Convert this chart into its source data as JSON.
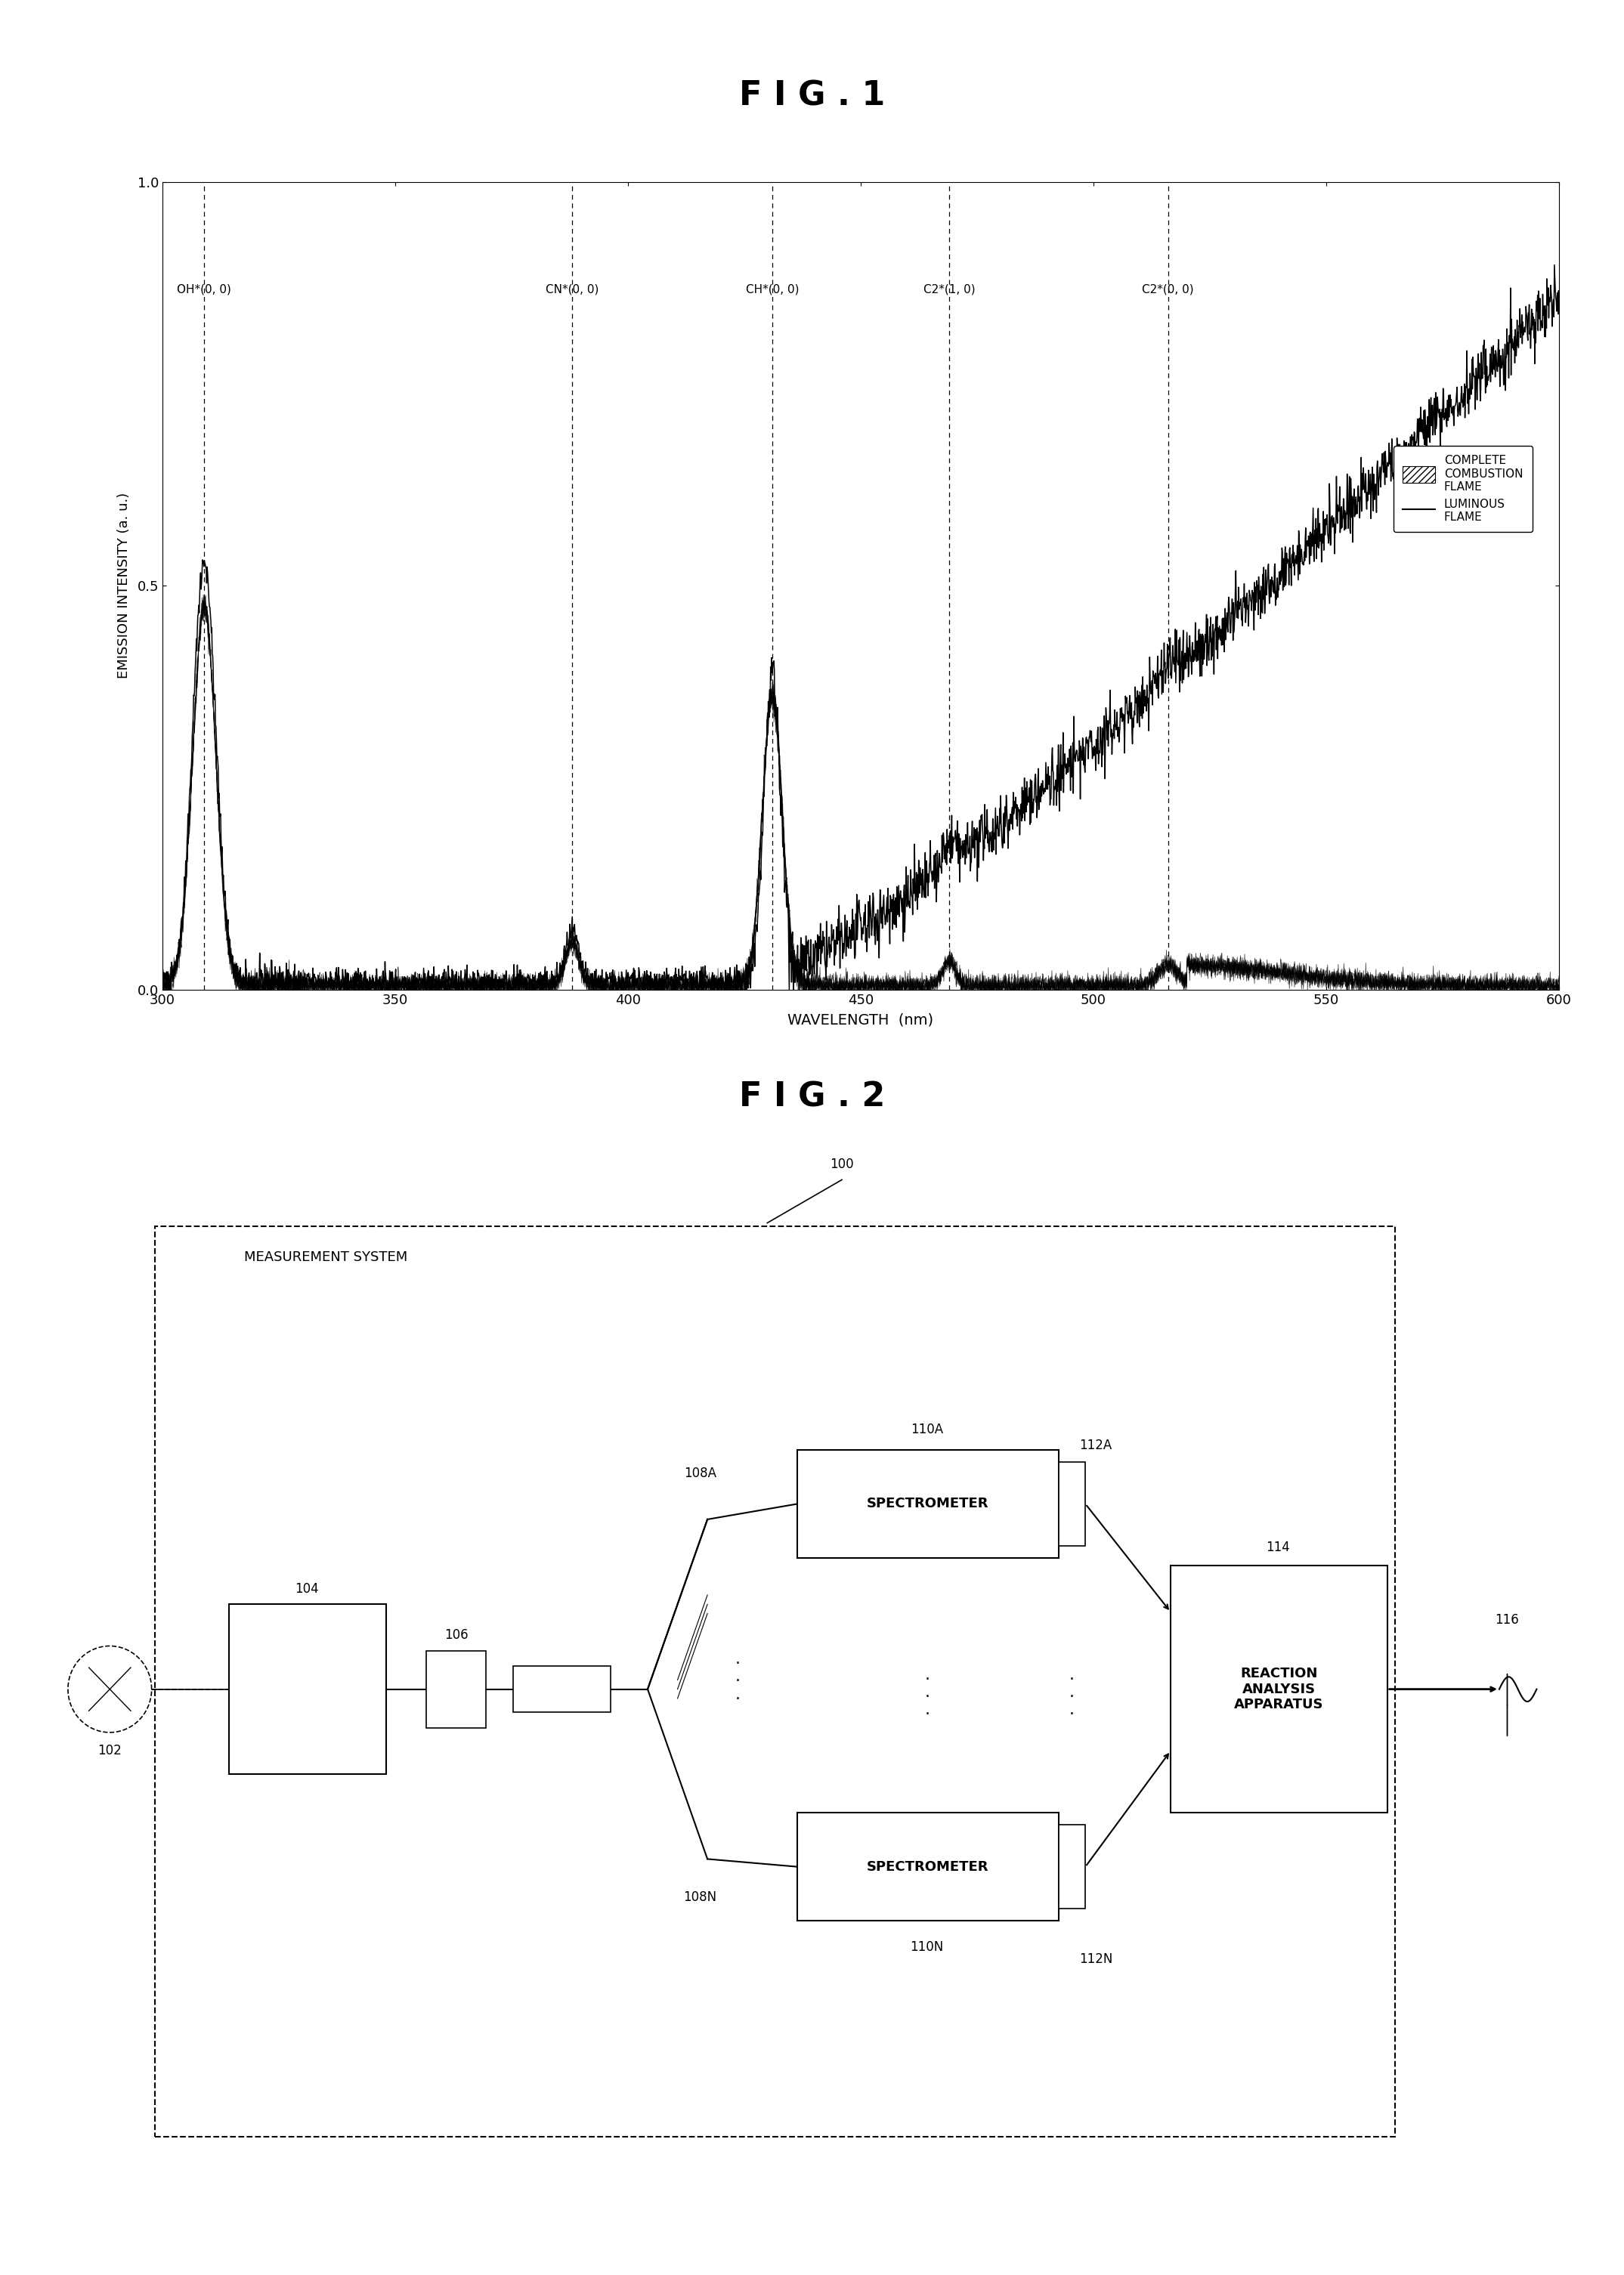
{
  "fig1_title": "F I G . 1",
  "fig2_title": "F I G . 2",
  "xlabel": "WAVELENGTH  (nm)",
  "ylabel": "EMISSION INTENSITY (a.u.)",
  "xlim": [
    300,
    600
  ],
  "ylim": [
    0.0,
    1.0
  ],
  "yticks": [
    0.0,
    0.5,
    1.0
  ],
  "xticks": [
    300,
    350,
    400,
    450,
    500,
    550,
    600
  ],
  "dashed_lines": [
    309,
    388,
    431,
    469,
    516
  ],
  "annotations": [
    {
      "x": 309,
      "label": "OH*(0, 0)"
    },
    {
      "x": 388,
      "label": "CN*(0, 0)"
    },
    {
      "x": 431,
      "label": "CH*(0, 0)"
    },
    {
      "x": 469,
      "label": "C2*(1, 0)"
    },
    {
      "x": 516,
      "label": "C2*(0, 0)"
    }
  ],
  "legend_complete": "COMPLETE\nCOMBUSTION\nFLAME",
  "legend_luminous": "LUMINOUS\nFLAME",
  "bg_color": "#ffffff"
}
